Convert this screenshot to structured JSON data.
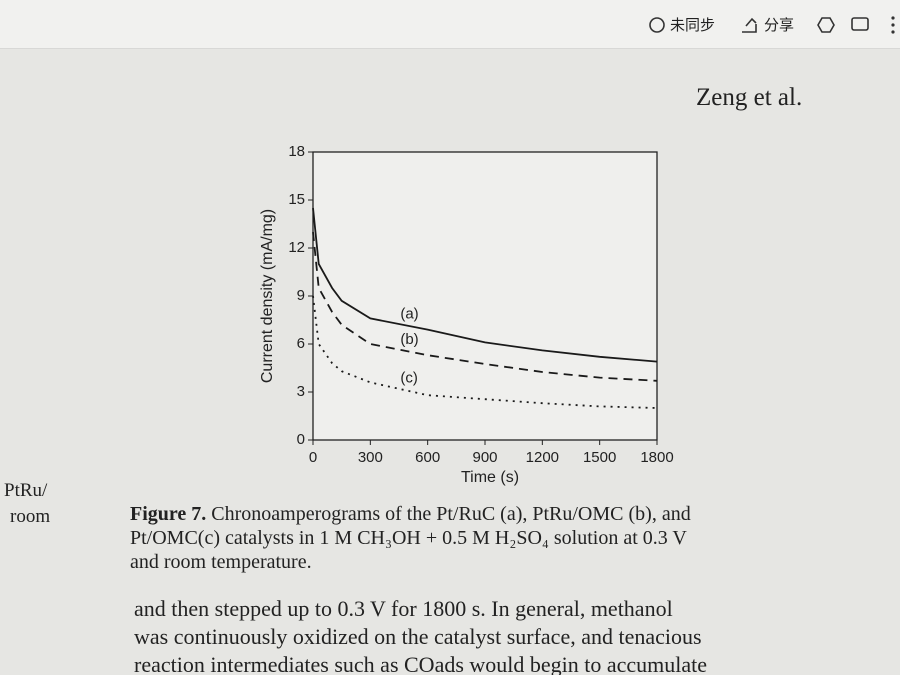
{
  "toolbar": {
    "sync": "未同步",
    "share": "分享"
  },
  "header": {
    "author": "Zeng et al."
  },
  "margin": {
    "lines": [
      "PtRu/",
      "room"
    ]
  },
  "chart_data": {
    "type": "line",
    "xlabel": "Time (s)",
    "ylabel": "Current density (mA/mg)",
    "x": [
      0,
      30,
      100,
      150,
      300,
      600,
      900,
      1200,
      1500,
      1800
    ],
    "series": [
      {
        "name": "(a)",
        "color": "#1a1a1a",
        "style": "solid",
        "values": [
          14.5,
          11,
          9.5,
          8.7,
          7.6,
          6.9,
          6.1,
          5.6,
          5.2,
          4.9
        ]
      },
      {
        "name": "(b)",
        "color": "#1a1a1a",
        "style": "dashed",
        "values": [
          13,
          9.5,
          8,
          7.2,
          6,
          5.3,
          4.75,
          4.25,
          3.9,
          3.7
        ]
      },
      {
        "name": "(c)",
        "color": "#1a1a1a",
        "style": "dotted",
        "values": [
          9,
          6,
          4.8,
          4.3,
          3.6,
          2.8,
          2.55,
          2.3,
          2.1,
          2
        ]
      }
    ],
    "xlim": [
      0,
      1800
    ],
    "xticks": [
      0,
      300,
      600,
      900,
      1200,
      1500,
      1800
    ],
    "ylim": [
      0,
      18
    ],
    "yticks": [
      0,
      3,
      6,
      9,
      12,
      15,
      18
    ]
  },
  "caption": {
    "label": "Figure 7.",
    "lines": [
      " Chronoamperograms of the Pt/RuC (a), PtRu/OMC (b), and",
      "Pt/OMC(c) catalysts in 1 M CH₃OH + 0.5 M H₂SO₄ solution at 0.3 V",
      "and room temperature."
    ]
  },
  "body": {
    "lines": [
      "and then stepped up to 0.3 V for 1800 s. In general, methanol",
      "was continuously oxidized on the catalyst surface, and tenacious",
      "reaction intermediates such as COads would begin to accumulate"
    ]
  }
}
